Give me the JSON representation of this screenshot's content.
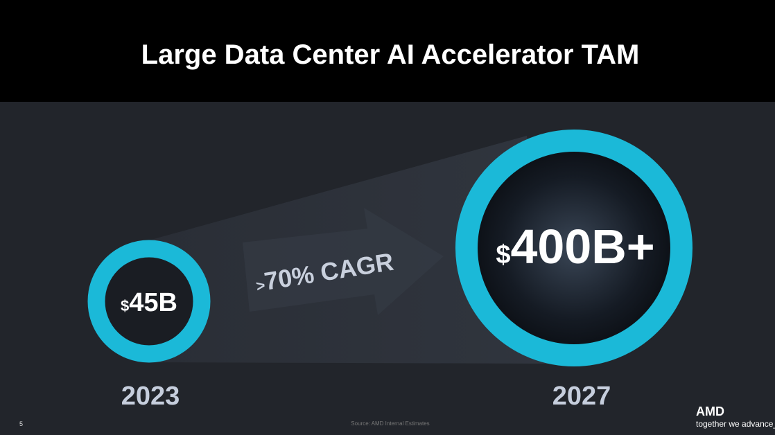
{
  "header": {
    "title": "Large Data Center AI Accelerator TAM"
  },
  "start": {
    "prefix": "$",
    "amount": "45B",
    "year": "2023"
  },
  "growth": {
    "prefix": ">",
    "text": "70% CAGR"
  },
  "end": {
    "prefix": "$",
    "amount": "400B+",
    "year": "2027"
  },
  "footer": {
    "page": "5",
    "source": "Source:  AMD Internal Estimates",
    "brand": "AMD",
    "tagline": "together we advance_"
  }
}
